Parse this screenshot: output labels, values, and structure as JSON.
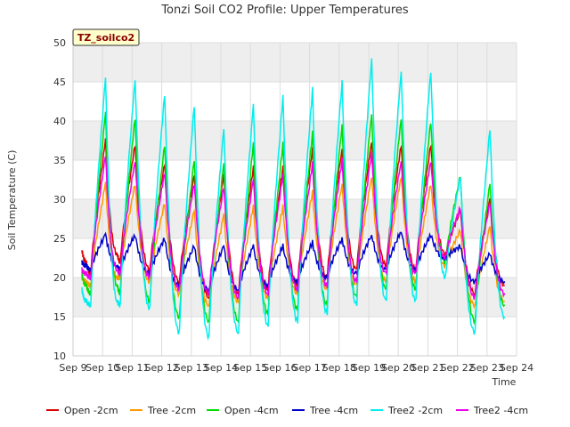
{
  "chart_data": {
    "type": "line",
    "title": "Tonzi Soil CO2 Profile: Upper Temperatures",
    "xlabel": "Time",
    "ylabel": "Soil Temperature (C)",
    "badge": "TZ_soilco2",
    "ylim": [
      10,
      50
    ],
    "yticks": [
      10,
      15,
      20,
      25,
      30,
      35,
      40,
      45,
      50
    ],
    "xlim": [
      9,
      24
    ],
    "xticks": [
      {
        "x": 9,
        "label": "Sep 9"
      },
      {
        "x": 10,
        "label": "Sep 10"
      },
      {
        "x": 11,
        "label": "Sep 11"
      },
      {
        "x": 12,
        "label": "Sep 12"
      },
      {
        "x": 13,
        "label": "Sep 13"
      },
      {
        "x": 14,
        "label": "Sep 14"
      },
      {
        "x": 15,
        "label": "Sep 15"
      },
      {
        "x": 16,
        "label": "Sep 16"
      },
      {
        "x": 17,
        "label": "Sep 17"
      },
      {
        "x": 18,
        "label": "Sep 18"
      },
      {
        "x": 19,
        "label": "Sep 19"
      },
      {
        "x": 20,
        "label": "Sep 20"
      },
      {
        "x": 21,
        "label": "Sep 21"
      },
      {
        "x": 22,
        "label": "Sep 22"
      },
      {
        "x": 23,
        "label": "Sep 23"
      },
      {
        "x": 24,
        "label": "Sep 24"
      }
    ],
    "grid": true,
    "legend_position": "bottom",
    "daily_x": [
      9.3,
      9.45,
      9.6,
      10.1,
      10.5,
      10.6,
      11.1,
      11.6,
      12.1,
      12.6,
      13.1,
      13.6,
      14.1,
      14.6,
      15.1,
      15.6,
      16.1,
      16.6,
      17.1,
      17.6,
      18.1,
      18.6,
      19.1,
      19.6,
      20.1,
      20.6,
      21.1,
      21.6,
      22.1,
      22.6,
      23.1,
      23.6
    ],
    "series": [
      {
        "name": "Open -2cm",
        "color": "#dd0000",
        "values": [
          23.5,
          22.0,
          20.5,
          37.5,
          23.0,
          22.0,
          37.0,
          21.0,
          34.5,
          19.5,
          33.0,
          17.5,
          33.0,
          18.0,
          34.0,
          18.5,
          34.0,
          19.0,
          36.5,
          20.0,
          36.5,
          21.0,
          37.5,
          21.5,
          37.0,
          21.0,
          37.0,
          23.0,
          28.5,
          18.0,
          30.0,
          19.0
        ]
      },
      {
        "name": "Tree -2cm",
        "color": "#ff9900",
        "values": [
          20.0,
          19.5,
          19.0,
          32.0,
          20.0,
          20.0,
          32.0,
          19.5,
          29.5,
          18.0,
          28.5,
          16.5,
          28.0,
          17.0,
          29.0,
          17.5,
          29.0,
          18.0,
          31.0,
          18.5,
          32.0,
          19.0,
          33.0,
          19.5,
          33.0,
          19.5,
          32.0,
          21.5,
          26.0,
          16.5,
          26.5,
          17.0
        ]
      },
      {
        "name": "Open -4cm",
        "color": "#00dd00",
        "values": [
          20.5,
          19.0,
          18.0,
          41.0,
          19.0,
          18.0,
          40.5,
          17.0,
          37.0,
          15.0,
          35.0,
          14.5,
          34.5,
          14.5,
          37.0,
          15.5,
          37.0,
          16.0,
          38.5,
          16.5,
          39.5,
          17.5,
          41.0,
          18.5,
          40.5,
          18.5,
          40.0,
          22.0,
          33.0,
          14.5,
          32.0,
          16.5
        ]
      },
      {
        "name": "Tree -4cm",
        "color": "#0000cc",
        "values": [
          22.0,
          21.5,
          21.0,
          25.5,
          21.5,
          21.0,
          25.5,
          20.5,
          25.0,
          19.0,
          24.0,
          18.5,
          24.0,
          18.5,
          24.0,
          19.0,
          24.0,
          19.5,
          24.5,
          20.0,
          25.0,
          20.5,
          25.5,
          21.0,
          26.0,
          21.0,
          25.5,
          22.5,
          24.0,
          19.5,
          23.0,
          19.5
        ]
      },
      {
        "name": "Tree2 -2cm",
        "color": "#00eeee",
        "values": [
          18.5,
          17.0,
          16.5,
          45.5,
          17.0,
          16.5,
          45.5,
          16.0,
          43.5,
          13.0,
          42.0,
          12.5,
          39.0,
          13.0,
          42.0,
          14.0,
          43.0,
          14.5,
          44.0,
          15.5,
          45.0,
          16.5,
          48.0,
          17.0,
          46.5,
          17.0,
          46.5,
          20.0,
          33.0,
          13.0,
          39.0,
          15.0
        ]
      },
      {
        "name": "Tree2 -4cm",
        "color": "#ee00ee",
        "values": [
          21.0,
          20.5,
          20.0,
          35.5,
          21.0,
          20.5,
          35.0,
          20.0,
          33.5,
          18.5,
          32.0,
          18.0,
          31.5,
          17.5,
          32.5,
          18.0,
          33.0,
          18.5,
          34.5,
          19.0,
          35.0,
          19.5,
          36.0,
          20.5,
          35.0,
          20.5,
          35.0,
          22.5,
          29.0,
          17.5,
          29.5,
          18.0
        ]
      }
    ]
  }
}
